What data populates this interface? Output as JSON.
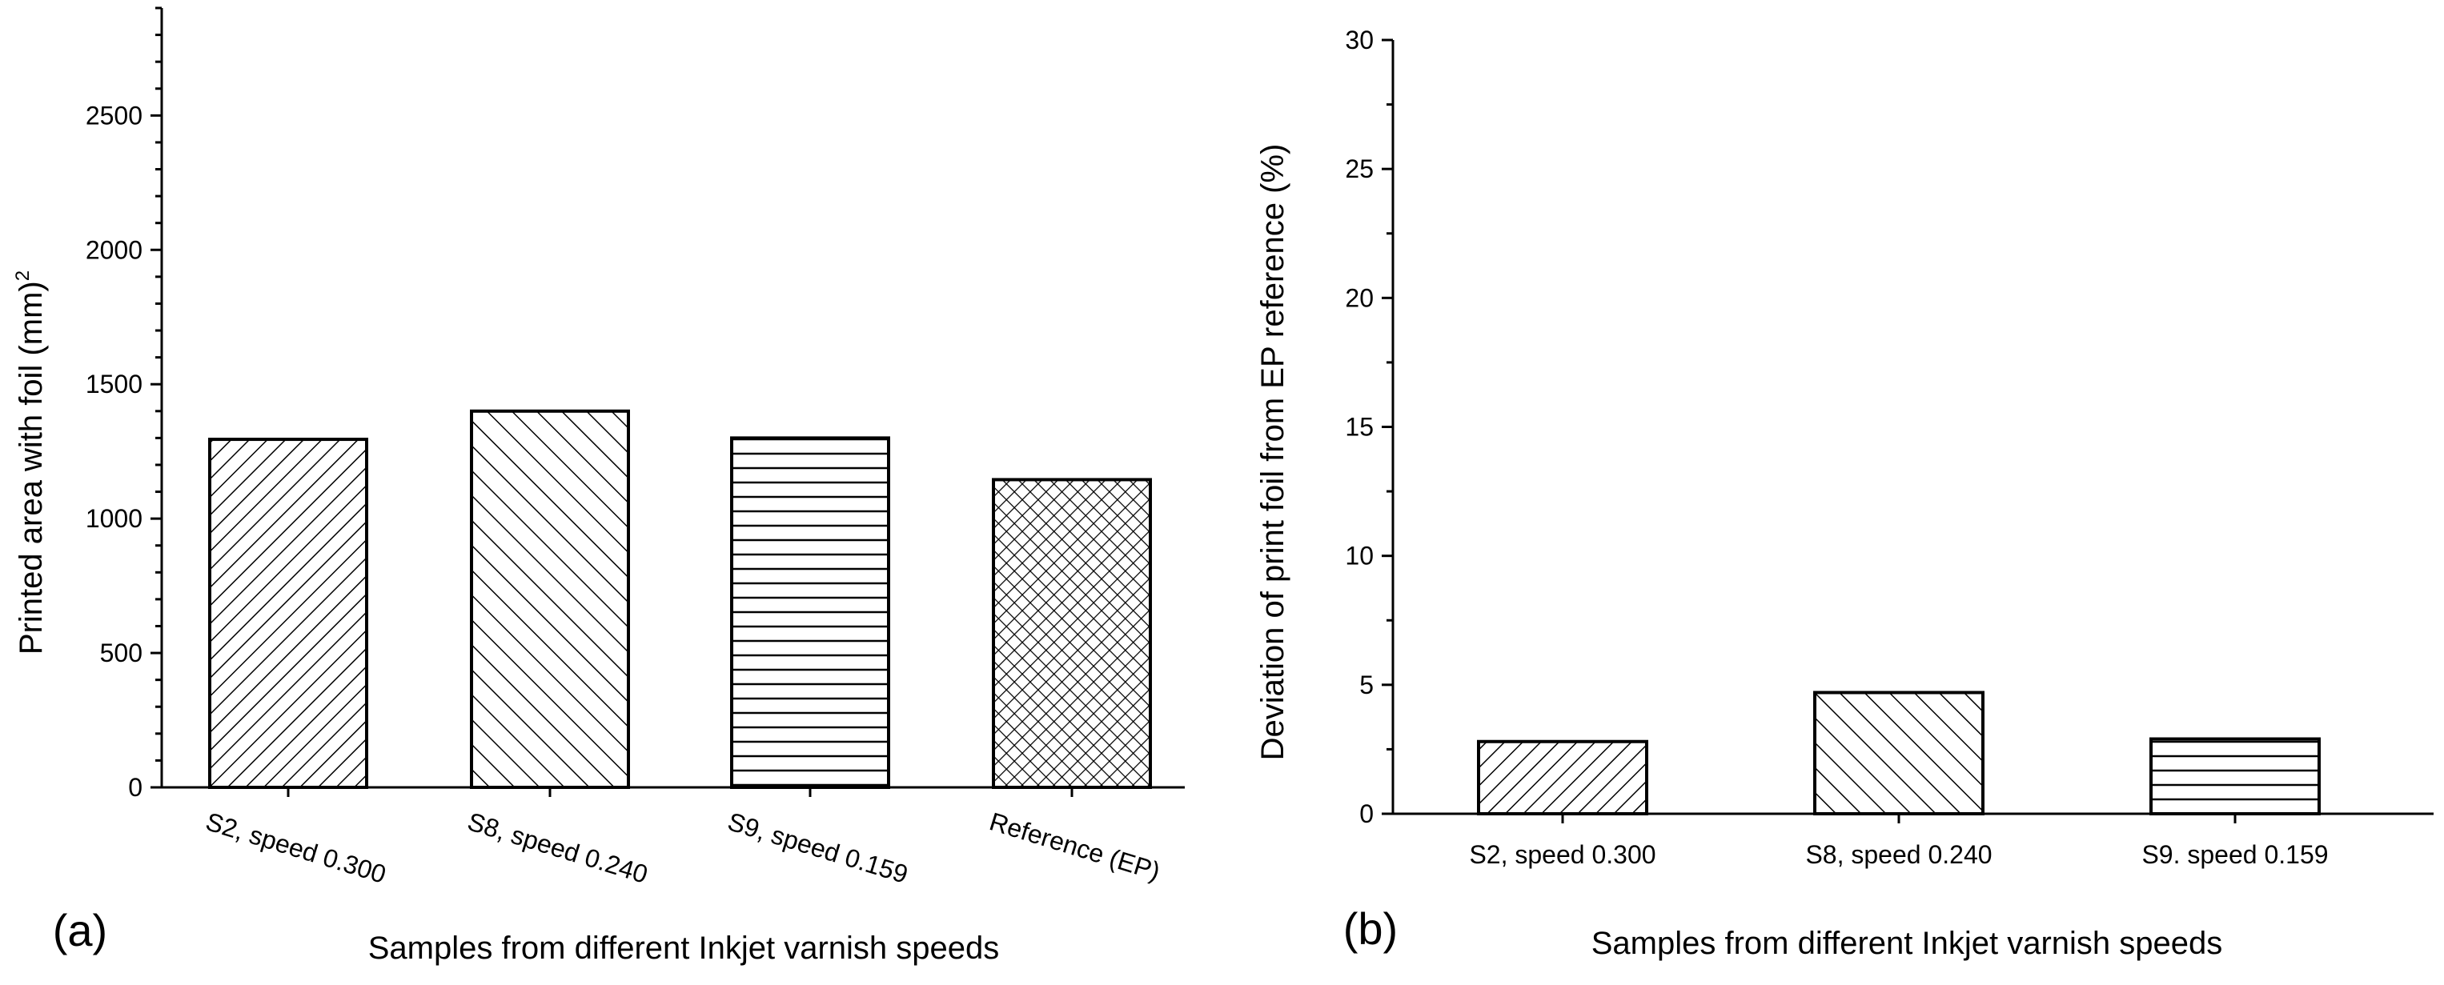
{
  "chart_data": [
    {
      "panel": "(a)",
      "type": "bar",
      "title": "",
      "xlabel": "Samples from different Inkjet varnish speeds",
      "ylabel": "Printed area with foil (mm)",
      "ylabel_superscript": "2",
      "ylim": [
        0,
        2900
      ],
      "yticks": [
        0,
        500,
        1000,
        1500,
        2000,
        2500
      ],
      "grid": false,
      "categories": [
        "S2, speed 0.300",
        "S8, speed 0.240",
        "S9, speed 0.159",
        "Reference (EP)"
      ],
      "values": [
        1295,
        1400,
        1300,
        1145
      ],
      "patterns": [
        "diag-dense",
        "diag-back",
        "horizontal",
        "crosshatch"
      ]
    },
    {
      "panel": "(b)",
      "type": "bar",
      "title": "",
      "xlabel": "Samples from different Inkjet varnish speeds",
      "ylabel": "Deviation of print foil from EP reference (%)",
      "ylim": [
        0,
        30
      ],
      "yticks": [
        0,
        5,
        10,
        15,
        20,
        25,
        30
      ],
      "grid": false,
      "categories": [
        "S2, speed 0.300",
        "S8, speed 0.240",
        "S9. speed 0.159"
      ],
      "values": [
        2.8,
        4.7,
        2.9
      ],
      "patterns": [
        "diag-dense",
        "diag-back",
        "horizontal"
      ]
    }
  ]
}
